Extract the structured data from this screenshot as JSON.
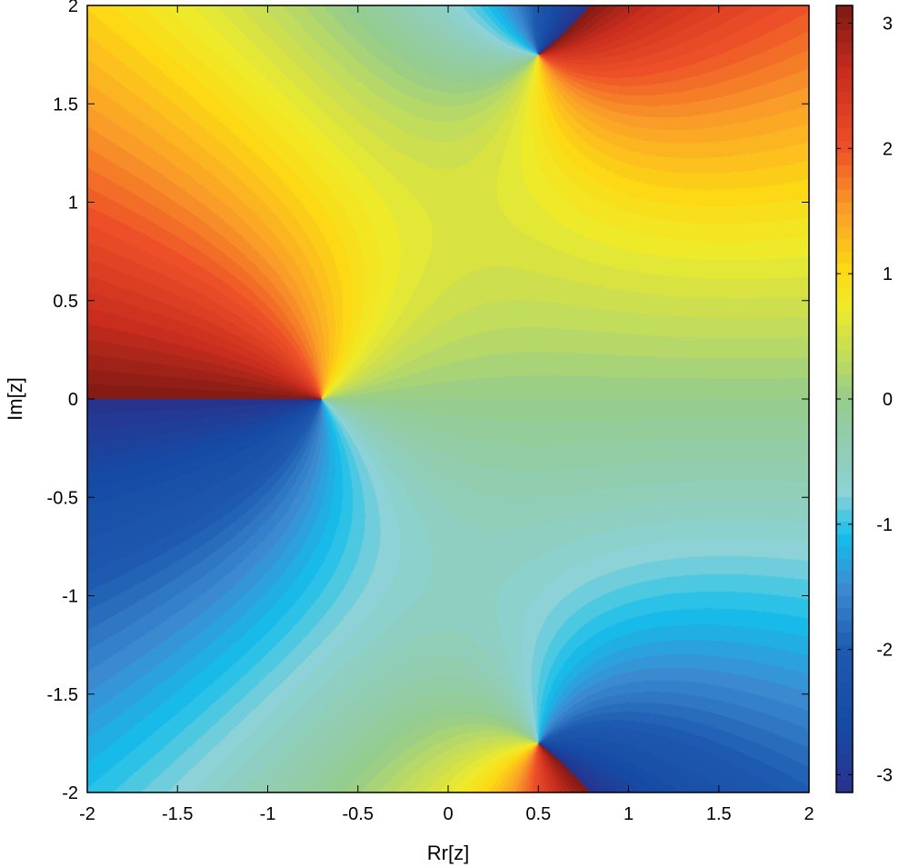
{
  "chart_data": {
    "type": "heatmap",
    "title": "",
    "xlabel": "Rr[z]",
    "ylabel": "Im[z]",
    "xlim": [
      -2,
      2
    ],
    "ylim": [
      -2,
      2
    ],
    "x_ticks": [
      "-2",
      "-1.5",
      "-1",
      "-0.5",
      "0",
      "0.5",
      "1",
      "1.5",
      "2"
    ],
    "y_ticks": [
      "2",
      "1.5",
      "1",
      "0.5",
      "0",
      "-0.5",
      "-1",
      "-1.5",
      "-2"
    ],
    "colorbar": {
      "range": [
        -3.1416,
        3.1416
      ],
      "ticks": [
        "3",
        "2",
        "1",
        "0",
        "-1",
        "-2",
        "-3"
      ],
      "colormap": "jet-like (dark blue → cyan → green → yellow → orange → dark red)",
      "levels": 64
    },
    "quantity": "phase (argument) of complex function over the complex plane",
    "zeros": [
      {
        "re": -0.7,
        "im": 0.0
      },
      {
        "re": 0.5,
        "im": 1.75
      },
      {
        "re": 0.5,
        "im": -1.75
      }
    ],
    "poles": [],
    "grid": false,
    "legend": "none"
  }
}
